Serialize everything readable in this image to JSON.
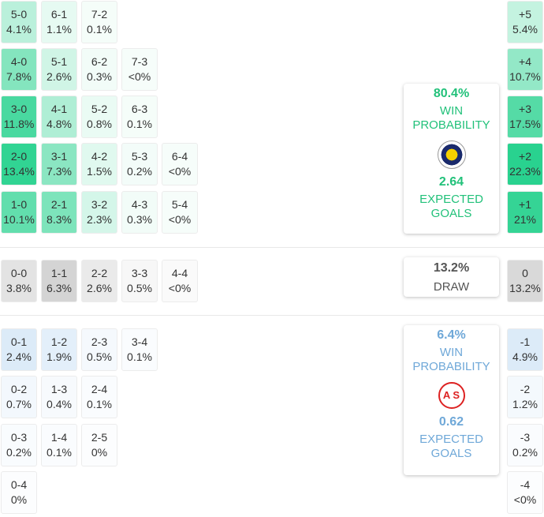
{
  "colors": {
    "home": "#22c17a",
    "away": "#6fa8d8",
    "draw": "#555555"
  },
  "home_scores": [
    [
      {
        "score": "5-0",
        "pct": "4.1%"
      },
      {
        "score": "6-1",
        "pct": "1.1%"
      },
      {
        "score": "7-2",
        "pct": "0.1%"
      }
    ],
    [
      {
        "score": "4-0",
        "pct": "7.8%"
      },
      {
        "score": "5-1",
        "pct": "2.6%"
      },
      {
        "score": "6-2",
        "pct": "0.3%"
      },
      {
        "score": "7-3",
        "pct": "<0%"
      }
    ],
    [
      {
        "score": "3-0",
        "pct": "11.8%"
      },
      {
        "score": "4-1",
        "pct": "4.8%"
      },
      {
        "score": "5-2",
        "pct": "0.8%"
      },
      {
        "score": "6-3",
        "pct": "0.1%"
      }
    ],
    [
      {
        "score": "2-0",
        "pct": "13.4%"
      },
      {
        "score": "3-1",
        "pct": "7.3%"
      },
      {
        "score": "4-2",
        "pct": "1.5%"
      },
      {
        "score": "5-3",
        "pct": "0.2%"
      },
      {
        "score": "6-4",
        "pct": "<0%"
      }
    ],
    [
      {
        "score": "1-0",
        "pct": "10.1%"
      },
      {
        "score": "2-1",
        "pct": "8.3%"
      },
      {
        "score": "3-2",
        "pct": "2.3%"
      },
      {
        "score": "4-3",
        "pct": "0.3%"
      },
      {
        "score": "5-4",
        "pct": "<0%"
      }
    ]
  ],
  "draw_scores": [
    {
      "score": "0-0",
      "pct": "3.8%"
    },
    {
      "score": "1-1",
      "pct": "6.3%"
    },
    {
      "score": "2-2",
      "pct": "2.6%"
    },
    {
      "score": "3-3",
      "pct": "0.5%"
    },
    {
      "score": "4-4",
      "pct": "<0%"
    }
  ],
  "away_scores": [
    [
      {
        "score": "0-1",
        "pct": "2.4%"
      },
      {
        "score": "1-2",
        "pct": "1.9%"
      },
      {
        "score": "2-3",
        "pct": "0.5%"
      },
      {
        "score": "3-4",
        "pct": "0.1%"
      }
    ],
    [
      {
        "score": "0-2",
        "pct": "0.7%"
      },
      {
        "score": "1-3",
        "pct": "0.4%"
      },
      {
        "score": "2-4",
        "pct": "0.1%"
      }
    ],
    [
      {
        "score": "0-3",
        "pct": "0.2%"
      },
      {
        "score": "1-4",
        "pct": "0.1%"
      },
      {
        "score": "2-5",
        "pct": "0%"
      }
    ],
    [
      {
        "score": "0-4",
        "pct": "0%"
      }
    ]
  ],
  "margins_home": [
    {
      "label": "+5",
      "pct": "5.4%"
    },
    {
      "label": "+4",
      "pct": "10.7%"
    },
    {
      "label": "+3",
      "pct": "17.5%"
    },
    {
      "label": "+2",
      "pct": "22.3%"
    },
    {
      "label": "+1",
      "pct": "21%"
    }
  ],
  "margin_draw": {
    "label": "0",
    "pct": "13.2%"
  },
  "margins_away": [
    {
      "label": "-1",
      "pct": "4.9%"
    },
    {
      "label": "-2",
      "pct": "1.2%"
    },
    {
      "label": "-3",
      "pct": "0.2%"
    },
    {
      "label": "-4",
      "pct": "<0%"
    }
  ],
  "home_summary": {
    "win_pct": "80.4%",
    "win_label": "WIN PROBABILITY",
    "xg": "2.64",
    "xg_label": "EXPECTED GOALS",
    "logo": "fenerbahce-crest"
  },
  "draw_summary": {
    "pct": "13.2%",
    "label": "DRAW"
  },
  "away_summary": {
    "win_pct": "6.4%",
    "win_label": "WIN PROBABILITY",
    "xg": "0.62",
    "xg_label": "EXPECTED GOALS",
    "logo": "antalyaspor-crest"
  }
}
